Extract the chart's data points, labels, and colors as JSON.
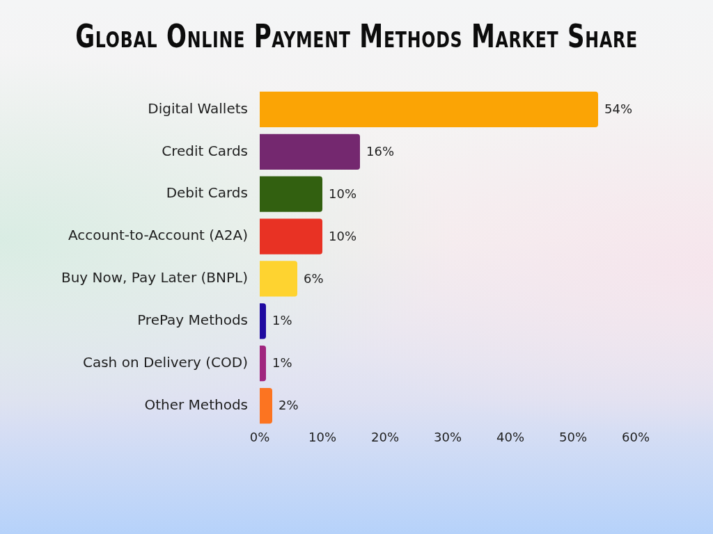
{
  "chart_data": {
    "type": "bar",
    "orientation": "horizontal",
    "title": "Global Online Payment Methods Market Share",
    "categories": [
      "Digital Wallets",
      "Credit Cards",
      "Debit Cards",
      "Account-to-Account (A2A)",
      "Buy Now, Pay Later (BNPL)",
      "PrePay Methods",
      "Cash on Delivery (COD)",
      "Other Methods"
    ],
    "values": [
      54,
      16,
      10,
      10,
      6,
      1,
      1,
      2
    ],
    "colors": [
      "#fba405",
      "#74286f",
      "#326010",
      "#e83224",
      "#fed330",
      "#1f0aa0",
      "#a0267e",
      "#fc7421"
    ],
    "value_labels": [
      "54%",
      "16%",
      "10%",
      "10%",
      "6%",
      "1%",
      "1%",
      "2%"
    ],
    "xlim": [
      0,
      60
    ],
    "xticks": [
      {
        "value": 0,
        "label": "0%"
      },
      {
        "value": 10,
        "label": "10%"
      },
      {
        "value": 20,
        "label": "20%"
      },
      {
        "value": 30,
        "label": "30%"
      },
      {
        "value": 40,
        "label": "40%"
      },
      {
        "value": 50,
        "label": "50%"
      },
      {
        "value": 60,
        "label": "60%"
      }
    ],
    "grid": false,
    "legend": false
  }
}
